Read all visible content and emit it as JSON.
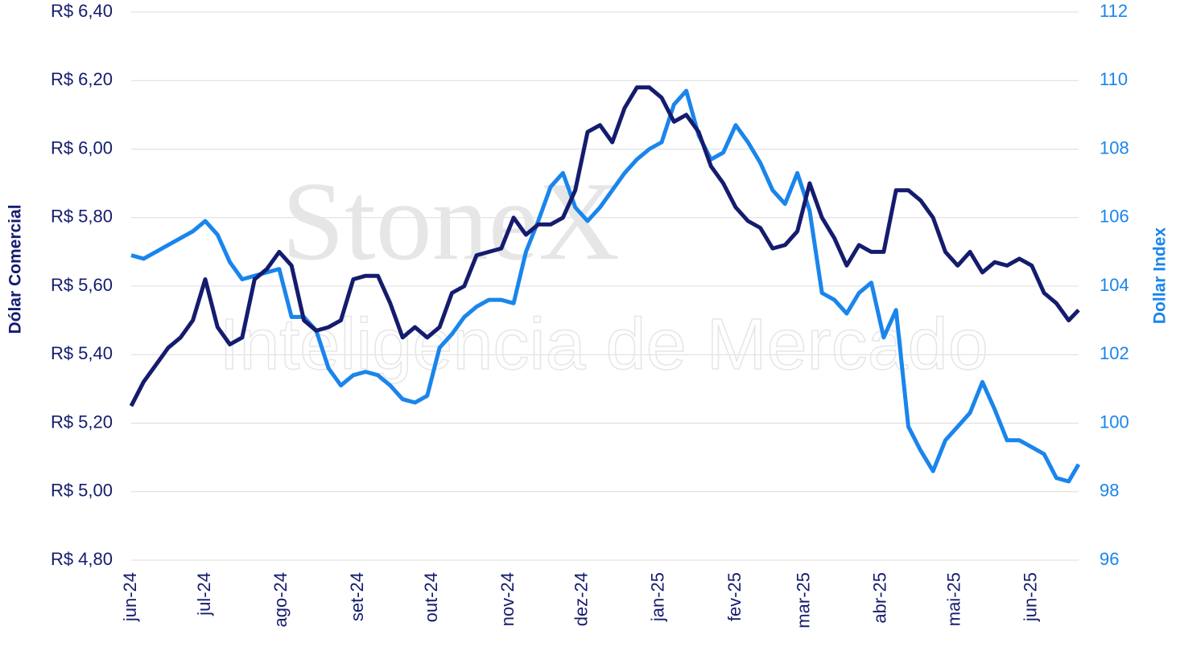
{
  "chart_data": {
    "type": "line",
    "watermark": {
      "brand": "StoneX",
      "subtitle": "Inteligencia de Mercado"
    },
    "y_label": "Dólar Comercial",
    "y2_label": "Dollar Index",
    "x": [
      0,
      5,
      10,
      15,
      20,
      25,
      30,
      35,
      40,
      45,
      50,
      55,
      60,
      65,
      70,
      75,
      80,
      85,
      90,
      95,
      100,
      105,
      110,
      115,
      120,
      125,
      130,
      135,
      140,
      145,
      150,
      155,
      160,
      165,
      170,
      175,
      180,
      185,
      190,
      195,
      200,
      205,
      210,
      215,
      220,
      225,
      230,
      235,
      240,
      245,
      250,
      255,
      260,
      265,
      270,
      275,
      280,
      285,
      290,
      295,
      300,
      305,
      310,
      315,
      320,
      325,
      330,
      335,
      340,
      345,
      350,
      355,
      360,
      365,
      370,
      375,
      380,
      384
    ],
    "xlim": [
      0,
      384
    ],
    "xticks": [
      {
        "value": 0,
        "label": "jun-24"
      },
      {
        "value": 30,
        "label": "jul-24"
      },
      {
        "value": 61,
        "label": "ago-24"
      },
      {
        "value": 92,
        "label": "set-24"
      },
      {
        "value": 122,
        "label": "out-24"
      },
      {
        "value": 153,
        "label": "nov-24"
      },
      {
        "value": 183,
        "label": "dez-24"
      },
      {
        "value": 214,
        "label": "jan-25"
      },
      {
        "value": 245,
        "label": "fev-25"
      },
      {
        "value": 273,
        "label": "mar-25"
      },
      {
        "value": 304,
        "label": "abr-25"
      },
      {
        "value": 334,
        "label": "mai-25"
      },
      {
        "value": 365,
        "label": "jun-25"
      }
    ],
    "ylim": [
      4.8,
      6.4
    ],
    "yticks": [
      {
        "value": 4.8,
        "label": "R$ 4,80"
      },
      {
        "value": 5.0,
        "label": "R$ 5,00"
      },
      {
        "value": 5.2,
        "label": "R$ 5,20"
      },
      {
        "value": 5.4,
        "label": "R$ 5,40"
      },
      {
        "value": 5.6,
        "label": "R$ 5,60"
      },
      {
        "value": 5.8,
        "label": "R$ 5,80"
      },
      {
        "value": 6.0,
        "label": "R$ 6,00"
      },
      {
        "value": 6.2,
        "label": "R$ 6,20"
      },
      {
        "value": 6.4,
        "label": "R$ 6,40"
      }
    ],
    "y2lim": [
      96,
      112
    ],
    "y2ticks": [
      96,
      98,
      100,
      102,
      104,
      106,
      108,
      110,
      112
    ],
    "grid": true,
    "series": [
      {
        "name": "Dólar Comercial",
        "color": "#151c6e",
        "axis": "y",
        "values": [
          5.25,
          5.32,
          5.37,
          5.42,
          5.45,
          5.5,
          5.62,
          5.48,
          5.43,
          5.45,
          5.62,
          5.65,
          5.7,
          5.66,
          5.5,
          5.47,
          5.48,
          5.5,
          5.62,
          5.63,
          5.63,
          5.55,
          5.45,
          5.48,
          5.45,
          5.48,
          5.58,
          5.6,
          5.69,
          5.7,
          5.71,
          5.8,
          5.75,
          5.78,
          5.78,
          5.8,
          5.88,
          6.05,
          6.07,
          6.02,
          6.12,
          6.18,
          6.18,
          6.15,
          6.08,
          6.1,
          6.05,
          5.95,
          5.9,
          5.83,
          5.79,
          5.77,
          5.71,
          5.72,
          5.76,
          5.9,
          5.8,
          5.74,
          5.66,
          5.72,
          5.7,
          5.7,
          5.88,
          5.88,
          5.85,
          5.8,
          5.7,
          5.66,
          5.7,
          5.64,
          5.67,
          5.66,
          5.68,
          5.66,
          5.58,
          5.55,
          5.5,
          5.53
        ]
      },
      {
        "name": "Dollar Index",
        "color": "#1a85ec",
        "axis": "y2",
        "values": [
          104.9,
          104.8,
          105.0,
          105.2,
          105.4,
          105.6,
          105.9,
          105.5,
          104.7,
          104.2,
          104.3,
          104.4,
          104.5,
          103.1,
          103.1,
          102.7,
          101.6,
          101.1,
          101.4,
          101.5,
          101.4,
          101.1,
          100.7,
          100.6,
          100.8,
          102.2,
          102.6,
          103.1,
          103.4,
          103.6,
          103.6,
          103.5,
          105.0,
          105.9,
          106.9,
          107.3,
          106.3,
          105.9,
          106.3,
          106.8,
          107.3,
          107.7,
          108.0,
          108.2,
          109.3,
          109.7,
          108.4,
          107.7,
          107.9,
          108.7,
          108.2,
          107.6,
          106.8,
          106.4,
          107.3,
          106.2,
          103.8,
          103.6,
          103.2,
          103.8,
          104.1,
          102.5,
          103.3,
          99.9,
          99.2,
          98.6,
          99.5,
          99.9,
          100.3,
          101.2,
          100.4,
          99.5,
          99.5,
          99.3,
          99.1,
          98.4,
          98.3,
          98.8
        ]
      }
    ]
  }
}
